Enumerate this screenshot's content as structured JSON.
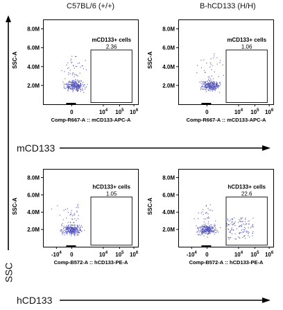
{
  "columns": [
    "C57BL/6 (+/+)",
    "B-hCD133 (H/H)"
  ],
  "row_labels": [
    "mCD133",
    "hCD133"
  ],
  "y_axis_label": "SSC",
  "chart_data": [
    {
      "type": "scatter",
      "title": "",
      "column": "C57BL/6 (+/+)",
      "xlabel": "Comp-R667-A :: mCD133-APC-A",
      "ylabel": "SSC-A",
      "yticks": [
        "8.0M",
        "6.0M",
        "4.0M",
        "2.0M"
      ],
      "ytick_values": [
        8000000,
        6000000,
        4000000,
        2000000
      ],
      "xticks": [
        "0",
        "10 4",
        "10 5",
        "10 6"
      ],
      "gate": {
        "name": "mCD133+ cells",
        "percent": "2.36"
      },
      "accent": "#5050b8"
    },
    {
      "type": "scatter",
      "title": "",
      "column": "B-hCD133 (H/H)",
      "xlabel": "Comp-R667-A :: mCD133-APC-A",
      "ylabel": "SSC-A",
      "yticks": [
        "8.0M",
        "6.0M",
        "4.0M",
        "2.0M"
      ],
      "ytick_values": [
        8000000,
        6000000,
        4000000,
        2000000
      ],
      "xticks": [
        "0",
        "10 4",
        "10 5",
        "10 6"
      ],
      "gate": {
        "name": "mCD133+ cells",
        "percent": "1.06"
      },
      "accent": "#5050b8"
    },
    {
      "type": "scatter",
      "title": "",
      "column": "C57BL/6 (+/+)",
      "xlabel": "Comp-B572-A :: hCD133-PE-A",
      "ylabel": "SSC-A",
      "yticks": [
        "8.0M",
        "6.0M",
        "4.0M",
        "2.0M"
      ],
      "ytick_values": [
        8000000,
        6000000,
        4000000,
        2000000
      ],
      "xticks": [
        "-10 4",
        "0",
        "10 4",
        "10 5",
        "10 6"
      ],
      "gate": {
        "name": "hCD133+ cells",
        "percent": "1.05"
      },
      "accent": "#5050b8"
    },
    {
      "type": "scatter",
      "title": "",
      "column": "B-hCD133 (H/H)",
      "xlabel": "Comp-B572-A :: hCD133-PE-A",
      "ylabel": "SSC-A",
      "yticks": [
        "8.0M",
        "6.0M",
        "4.0M",
        "2.0M"
      ],
      "ytick_values": [
        8000000,
        6000000,
        4000000,
        2000000
      ],
      "xticks": [
        "-10 4",
        "0",
        "10 4",
        "10 5",
        "10 6"
      ],
      "gate": {
        "name": "hCD133+ cells",
        "percent": "22.6"
      },
      "accent": "#5050b8"
    }
  ]
}
